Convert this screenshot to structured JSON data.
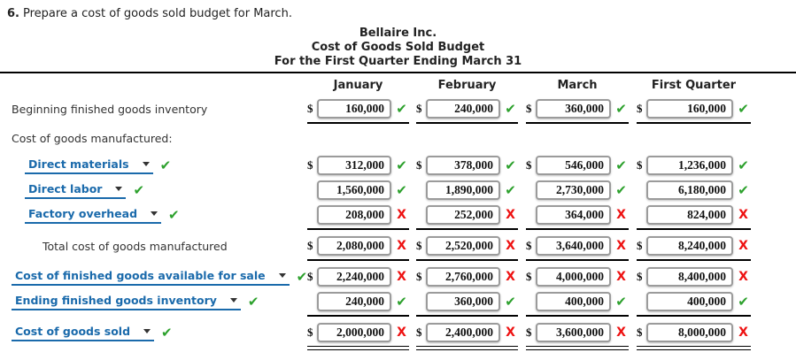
{
  "question": {
    "number": "6.",
    "text": "Prepare a cost of goods sold budget for March."
  },
  "report": {
    "company": "Bellaire Inc.",
    "title": "Cost of Goods Sold Budget",
    "period": "For the First Quarter Ending March 31"
  },
  "table": {
    "columns": [
      "January",
      "February",
      "March",
      "First Quarter"
    ],
    "rows": [
      {
        "id": "beginning-finished-goods-inventory",
        "label": "Beginning finished goods inventory",
        "label_style": "plain",
        "indent": 0,
        "dollar": true,
        "mark": "check",
        "values": [
          "160,000",
          "240,000",
          "360,000",
          "160,000"
        ],
        "rule_below": "single"
      },
      {
        "id": "cost-of-goods-manufactured-heading",
        "label": "Cost of goods manufactured:",
        "label_style": "plain",
        "indent": 0,
        "values": null
      },
      {
        "id": "direct-materials",
        "label": "Direct materials",
        "label_style": "dropdown",
        "label_mark": "check",
        "indent": 1,
        "dollar": true,
        "mark": "check",
        "values": [
          "312,000",
          "378,000",
          "546,000",
          "1,236,000"
        ]
      },
      {
        "id": "direct-labor",
        "label": "Direct labor",
        "label_style": "dropdown",
        "label_mark": "check",
        "indent": 1,
        "dollar": false,
        "mark": "check",
        "values": [
          "1,560,000",
          "1,890,000",
          "2,730,000",
          "6,180,000"
        ]
      },
      {
        "id": "factory-overhead",
        "label": "Factory overhead",
        "label_style": "dropdown",
        "label_mark": "check",
        "indent": 1,
        "dollar": false,
        "mark": "cross",
        "values": [
          "208,000",
          "252,000",
          "364,000",
          "824,000"
        ],
        "rule_below": "single"
      },
      {
        "id": "total-cost-of-goods-manufactured",
        "label": "Total cost of goods manufactured",
        "label_style": "plain",
        "indent": 2,
        "dollar": true,
        "mark": "cross",
        "values": [
          "2,080,000",
          "2,520,000",
          "3,640,000",
          "8,240,000"
        ],
        "rule_below": "single"
      },
      {
        "id": "cost-of-finished-goods-available-for-sale",
        "label": "Cost of finished goods available for sale",
        "label_style": "dropdown",
        "label_mark": "check",
        "indent": 0,
        "dollar": true,
        "mark": "cross",
        "values": [
          "2,240,000",
          "2,760,000",
          "4,000,000",
          "8,400,000"
        ]
      },
      {
        "id": "ending-finished-goods-inventory",
        "label": "Ending finished goods inventory",
        "label_style": "dropdown",
        "label_mark": "check",
        "indent": 0,
        "dollar": false,
        "mark": "check",
        "values": [
          "240,000",
          "360,000",
          "400,000",
          "400,000"
        ],
        "rule_below": "single"
      },
      {
        "id": "cost-of-goods-sold",
        "label": "Cost of goods sold",
        "label_style": "dropdown",
        "label_mark": "check",
        "indent": 0,
        "dollar": true,
        "mark": "cross",
        "values": [
          "2,000,000",
          "2,400,000",
          "3,600,000",
          "8,000,000"
        ],
        "rule_below": "double"
      }
    ]
  },
  "icons": {
    "check": "✔",
    "cross": "X",
    "dropdown_arrow": "chevron-down",
    "dollar": "$"
  },
  "colors": {
    "accent_blue": "#1a6aab",
    "correct_green": "#2da12d",
    "incorrect_red": "#ee1111",
    "rule_black": "#000000",
    "box_border_gray": "#9b9b9b"
  }
}
